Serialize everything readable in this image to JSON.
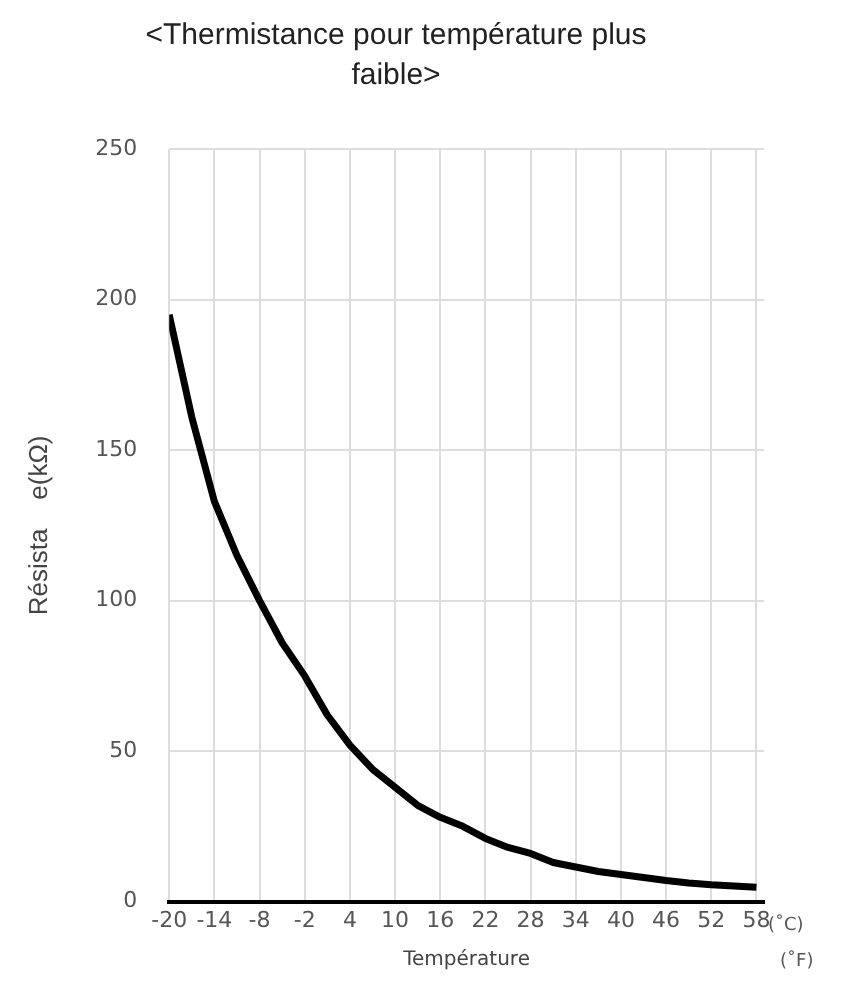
{
  "chart_data": {
    "type": "line",
    "title": "<Thermistance pour température plus faible>",
    "xlabel": "Température",
    "ylabel": "Résista    e(kΩ)",
    "annotations": [
      "(˚C)",
      "(˚F)"
    ],
    "x": [
      -20,
      -17,
      -14,
      -11,
      -8,
      -5,
      -2,
      1,
      4,
      7,
      10,
      13,
      16,
      19,
      22,
      25,
      28,
      31,
      34,
      37,
      40,
      43,
      46,
      49,
      52,
      55,
      58
    ],
    "series": [
      {
        "color": "#000000",
        "values": [
          195,
          161,
          133,
          115,
          100,
          86,
          75,
          62,
          52,
          44,
          38,
          32,
          28,
          25,
          21,
          18,
          16,
          13,
          11.5,
          10,
          9,
          8,
          7,
          6.2,
          5.6,
          5.2,
          4.8
        ]
      }
    ],
    "xlim": [
      -20,
      59
    ],
    "xticks": [
      -20,
      -14,
      -8,
      -2,
      4,
      10,
      16,
      22,
      28,
      34,
      40,
      46,
      52,
      58
    ],
    "ylim": [
      0,
      250
    ],
    "yticks": [
      0,
      50,
      100,
      150,
      200,
      250
    ],
    "grid": true,
    "legend": false,
    "marker": "none",
    "line_style": "solid"
  }
}
